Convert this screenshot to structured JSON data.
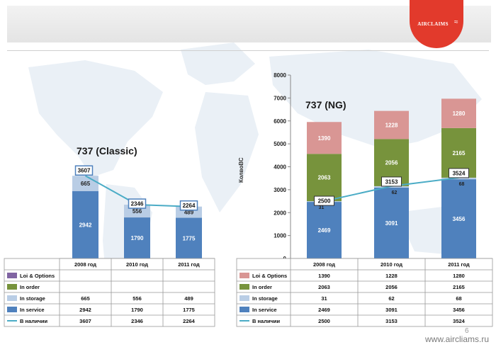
{
  "page": {
    "number": "6",
    "url": "www.aircliams.ru",
    "logo_text": "AIRCLAIMS"
  },
  "colors": {
    "loi": "#8064a2",
    "order": "#77933c",
    "storage": "#b9cde5",
    "service": "#4f81bd",
    "available": "#4bacc6",
    "ng_loi": "#d99694"
  },
  "chart_data": [
    {
      "type": "bar",
      "title": "737 (Classic)",
      "categories": [
        "2008 год",
        "2010 год",
        "2011 год"
      ],
      "series": [
        {
          "name": "Loi & Options",
          "values": [
            null,
            null,
            null
          ]
        },
        {
          "name": "In order",
          "values": [
            null,
            null,
            null
          ]
        },
        {
          "name": "In storage",
          "values": [
            665,
            556,
            489
          ]
        },
        {
          "name": "In service",
          "values": [
            2942,
            1790,
            1775
          ]
        },
        {
          "name": "В наличии",
          "values": [
            3607,
            2346,
            2264
          ]
        }
      ],
      "ylim": [
        0,
        8000
      ]
    },
    {
      "type": "bar",
      "title": "737 (NG)",
      "ylabel": "КолвоВС",
      "categories": [
        "2008 год",
        "2010 год",
        "2011 год"
      ],
      "yticks": [
        "0",
        "1000",
        "2000",
        "3000",
        "4000",
        "5000",
        "6000",
        "7000",
        "8000"
      ],
      "series": [
        {
          "name": "Loi & Options",
          "values": [
            1390,
            1228,
            1280
          ]
        },
        {
          "name": "In order",
          "values": [
            2063,
            2056,
            2165
          ]
        },
        {
          "name": "In storage",
          "values": [
            31,
            62,
            68
          ]
        },
        {
          "name": "In service",
          "values": [
            2469,
            3091,
            3456
          ]
        },
        {
          "name": "В наличии",
          "values": [
            2500,
            3153,
            3524
          ]
        }
      ],
      "ylim": [
        0,
        8000
      ]
    }
  ]
}
